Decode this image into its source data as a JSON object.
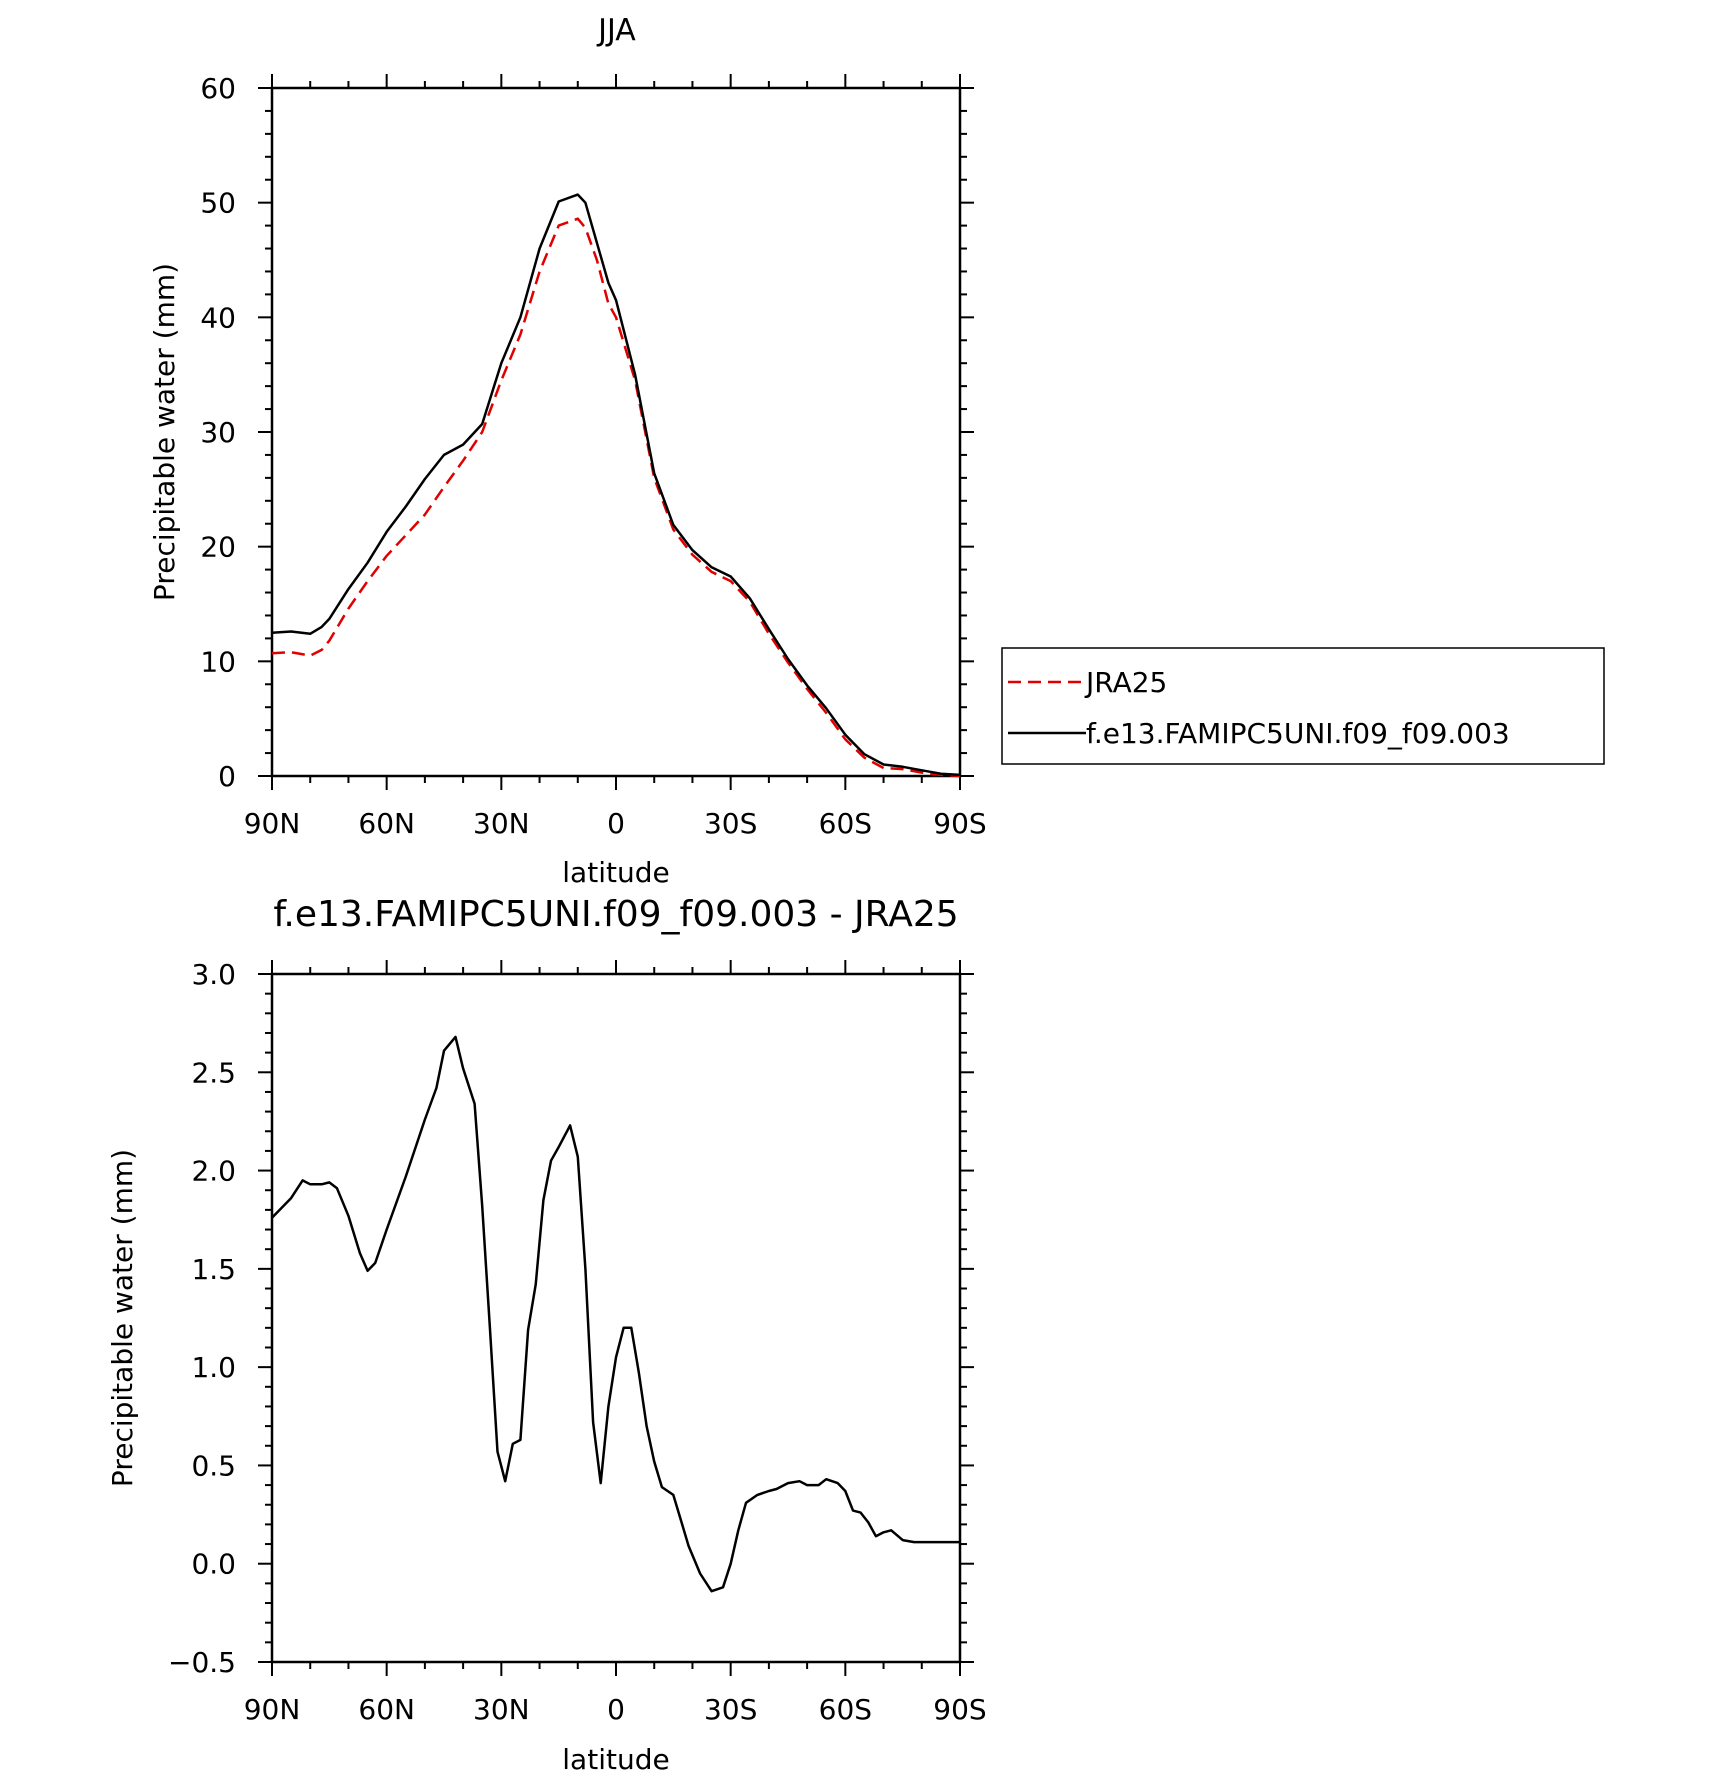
{
  "chart_data": [
    {
      "type": "line",
      "title": "JJA",
      "xlabel": "latitude",
      "ylabel": "Precipitable water (mm)",
      "xlim": [
        90,
        -90
      ],
      "ylim": [
        0,
        60
      ],
      "x_ticks": [
        90,
        60,
        30,
        0,
        -30,
        -60,
        -90
      ],
      "x_tick_labels": [
        "90N",
        "60N",
        "30N",
        "0",
        "30S",
        "60S",
        "90S"
      ],
      "y_ticks": [
        0,
        10,
        20,
        30,
        40,
        50,
        60
      ],
      "y_tick_labels": [
        "0",
        "10",
        "20",
        "30",
        "40",
        "50",
        "60"
      ],
      "grid": false,
      "legend": "right",
      "series": [
        {
          "name": "JRA25",
          "color": "#e00000",
          "dash": "dashed",
          "x": [
            90,
            85,
            80,
            77,
            75,
            70,
            65,
            60,
            55,
            50,
            45,
            40,
            35,
            30,
            25,
            20,
            15,
            10,
            8,
            5,
            2,
            0,
            -5,
            -10,
            -15,
            -20,
            -25,
            -30,
            -35,
            -40,
            -45,
            -50,
            -55,
            -60,
            -65,
            -70,
            -75,
            -80,
            -85,
            -90
          ],
          "y": [
            10.7,
            10.8,
            10.5,
            11.0,
            11.8,
            14.6,
            17.0,
            19.2,
            21.0,
            22.8,
            25.2,
            27.5,
            30.0,
            34.5,
            38.5,
            44.0,
            48.0,
            48.6,
            47.8,
            45.0,
            41.2,
            40.0,
            34.5,
            26.0,
            21.5,
            19.3,
            17.8,
            17.0,
            15.2,
            12.4,
            9.9,
            7.6,
            5.5,
            3.2,
            1.6,
            0.7,
            0.6,
            0.3,
            0.1,
            0.0
          ]
        },
        {
          "name": "f.e13.FAMIPC5UNI.f09_f09.003",
          "color": "#000000",
          "dash": "solid",
          "x": [
            90,
            85,
            80,
            77,
            75,
            70,
            65,
            60,
            55,
            50,
            45,
            40,
            35,
            30,
            25,
            20,
            15,
            10,
            8,
            5,
            2,
            0,
            -5,
            -10,
            -15,
            -20,
            -25,
            -30,
            -35,
            -40,
            -45,
            -50,
            -55,
            -60,
            -65,
            -70,
            -75,
            -80,
            -85,
            -90
          ],
          "y": [
            12.5,
            12.6,
            12.4,
            13.0,
            13.7,
            16.3,
            18.6,
            21.3,
            23.5,
            25.9,
            28.0,
            28.9,
            30.7,
            36.0,
            40.0,
            46.0,
            50.1,
            50.7,
            50.0,
            46.5,
            43.0,
            41.5,
            35.0,
            26.4,
            21.9,
            19.7,
            18.2,
            17.4,
            15.5,
            12.8,
            10.2,
            7.9,
            5.9,
            3.6,
            1.9,
            1.0,
            0.8,
            0.5,
            0.2,
            0.1
          ]
        }
      ]
    },
    {
      "type": "line",
      "title": "f.e13.FAMIPC5UNI.f09_f09.003 - JRA25",
      "xlabel": "latitude",
      "ylabel": "Precipitable water (mm)",
      "xlim": [
        90,
        -90
      ],
      "ylim": [
        -0.5,
        3.0
      ],
      "x_ticks": [
        90,
        60,
        30,
        0,
        -30,
        -60,
        -90
      ],
      "x_tick_labels": [
        "90N",
        "60N",
        "30N",
        "0",
        "30S",
        "60S",
        "90S"
      ],
      "y_ticks": [
        -0.5,
        0.0,
        0.5,
        1.0,
        1.5,
        2.0,
        2.5,
        3.0
      ],
      "y_tick_labels": [
        "−0.5",
        "0.0",
        "0.5",
        "1.0",
        "1.5",
        "2.0",
        "2.5",
        "3.0"
      ],
      "grid": false,
      "series": [
        {
          "color": "#000000",
          "dash": "solid",
          "x": [
            90,
            85,
            82,
            80,
            77,
            75,
            73,
            70,
            67,
            65,
            63,
            60,
            55,
            50,
            47,
            45,
            42,
            40,
            37,
            35,
            33,
            31,
            29,
            27,
            25,
            23,
            21,
            19,
            17,
            15,
            12,
            10,
            8,
            6,
            4,
            2,
            0,
            -2,
            -4,
            -6,
            -8,
            -10,
            -12,
            -15,
            -17,
            -19,
            -22,
            -25,
            -28,
            -30,
            -32,
            -34,
            -37,
            -40,
            -42,
            -45,
            -48,
            -50,
            -53,
            -55,
            -58,
            -60,
            -62,
            -64,
            -66,
            -68,
            -70,
            -72,
            -75,
            -78,
            -80,
            -82,
            -85,
            -87,
            -90
          ],
          "y": [
            1.76,
            1.86,
            1.95,
            1.93,
            1.93,
            1.94,
            1.91,
            1.77,
            1.58,
            1.49,
            1.53,
            1.7,
            1.97,
            2.26,
            2.42,
            2.61,
            2.68,
            2.52,
            2.34,
            1.82,
            1.2,
            0.57,
            0.42,
            0.61,
            0.63,
            1.19,
            1.42,
            1.85,
            2.05,
            2.12,
            2.23,
            2.07,
            1.5,
            0.72,
            0.41,
            0.8,
            1.05,
            1.2,
            1.2,
            0.97,
            0.7,
            0.52,
            0.39,
            0.35,
            0.22,
            0.09,
            -0.05,
            -0.14,
            -0.12,
            0.0,
            0.17,
            0.31,
            0.35,
            0.37,
            0.38,
            0.41,
            0.42,
            0.4,
            0.4,
            0.43,
            0.41,
            0.37,
            0.27,
            0.26,
            0.21,
            0.14,
            0.16,
            0.17,
            0.12,
            0.11,
            0.11,
            0.11,
            0.11,
            0.11,
            0.11
          ]
        }
      ]
    }
  ]
}
